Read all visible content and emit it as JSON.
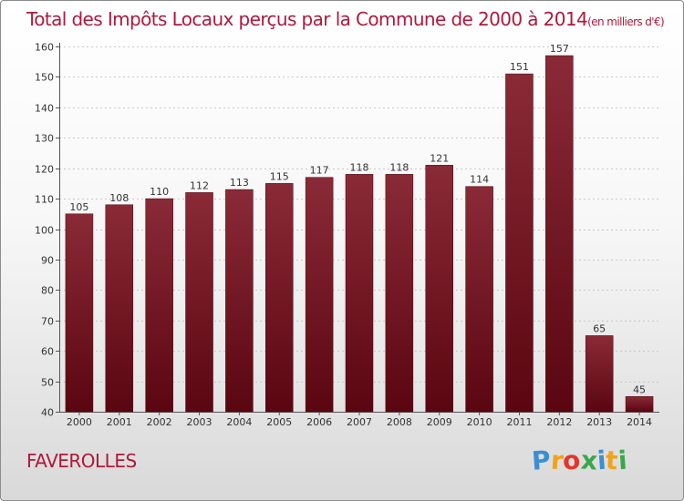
{
  "chart_data": {
    "type": "bar",
    "title": "Total des Impôts Locaux perçus par la Commune de 2000 à 2014",
    "subtitle": "(en milliers d'€)",
    "categories": [
      "2000",
      "2001",
      "2002",
      "2003",
      "2004",
      "2005",
      "2006",
      "2007",
      "2008",
      "2009",
      "2010",
      "2011",
      "2012",
      "2013",
      "2014"
    ],
    "values": [
      105,
      108,
      110,
      112,
      113,
      115,
      117,
      118,
      118,
      121,
      114,
      151,
      157,
      65,
      45
    ],
    "ylim": [
      40,
      160
    ],
    "yticks": [
      40,
      50,
      60,
      70,
      80,
      90,
      100,
      110,
      120,
      130,
      140,
      150,
      160
    ],
    "grid": true,
    "bar_color": "#6e0e1a",
    "title_color": "#b0183c"
  },
  "footer": {
    "commune": "FAVEROLLES",
    "brand_letters": [
      {
        "char": "P",
        "color": "#3b8fd1"
      },
      {
        "char": "r",
        "color": "#f2a31b"
      },
      {
        "char": "o",
        "color": "#e2372c"
      },
      {
        "char": "x",
        "color": "#3aa84a"
      },
      {
        "char": "i",
        "color": "#3b8fd1"
      },
      {
        "char": "t",
        "color": "#f2a31b"
      },
      {
        "char": "i",
        "color": "#3aa84a"
      }
    ]
  }
}
